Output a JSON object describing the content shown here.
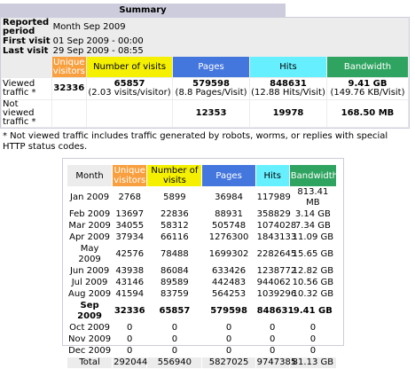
{
  "summary": {
    "title": "Summary",
    "info": [
      {
        "label": "Reported period",
        "value": "Month Sep 2009"
      },
      {
        "label": "First visit",
        "value": "01 Sep 2009 - 00:00"
      },
      {
        "label": "Last visit",
        "value": "29 Sep 2009 - 08:55"
      }
    ],
    "columns": [
      "Unique visitors",
      "Number of visits",
      "Pages",
      "Hits",
      "Bandwidth"
    ],
    "rows": [
      {
        "label": "Viewed traffic *",
        "values": [
          32336,
          65857,
          579598,
          848631,
          "9.41 GB"
        ],
        "notes": [
          null,
          "(2.03 visits/visitor)",
          "(8.8 Pages/Visit)",
          "(12.88 Hits/Visit)",
          "(149.76 KB/Visit)"
        ]
      },
      {
        "label": "Not viewed traffic *",
        "values": [
          null,
          null,
          12353,
          19978,
          "168.50 MB"
        ]
      }
    ],
    "note": "* Not viewed traffic includes traffic generated by robots, worms, or replies with special HTTP status codes."
  },
  "monthly": {
    "columns": [
      "Month",
      "Unique visitors",
      "Number of visits",
      "Pages",
      "Hits",
      "Bandwidth"
    ],
    "rows": [
      [
        "Jan 2009",
        2768,
        5899,
        36984,
        117989,
        "813.41 MB"
      ],
      [
        "Feb 2009",
        13697,
        22836,
        88931,
        358829,
        "3.14 GB"
      ],
      [
        "Mar 2009",
        34055,
        58312,
        505748,
        1074028,
        "7.34 GB"
      ],
      [
        "Apr 2009",
        37934,
        66116,
        1276300,
        1843133,
        "11.09 GB"
      ],
      [
        "May 2009",
        42576,
        78488,
        1699302,
        2282645,
        "15.65 GB"
      ],
      [
        "Jun 2009",
        43938,
        86084,
        633426,
        1238772,
        "12.82 GB"
      ],
      [
        "Jul 2009",
        43146,
        89589,
        442483,
        944062,
        "10.56 GB"
      ],
      [
        "Aug 2009",
        41594,
        83759,
        564253,
        1039296,
        "10.32 GB"
      ],
      [
        "Sep 2009",
        32336,
        65857,
        579598,
        848631,
        "9.41 GB"
      ],
      [
        "Oct 2009",
        0,
        0,
        0,
        0,
        0
      ],
      [
        "Nov 2009",
        0,
        0,
        0,
        0,
        0
      ],
      [
        "Dec 2009",
        0,
        0,
        0,
        0,
        0
      ]
    ],
    "current_row": 8,
    "total": [
      "Total",
      292044,
      556940,
      5827025,
      9747385,
      "81.13 GB"
    ]
  }
}
